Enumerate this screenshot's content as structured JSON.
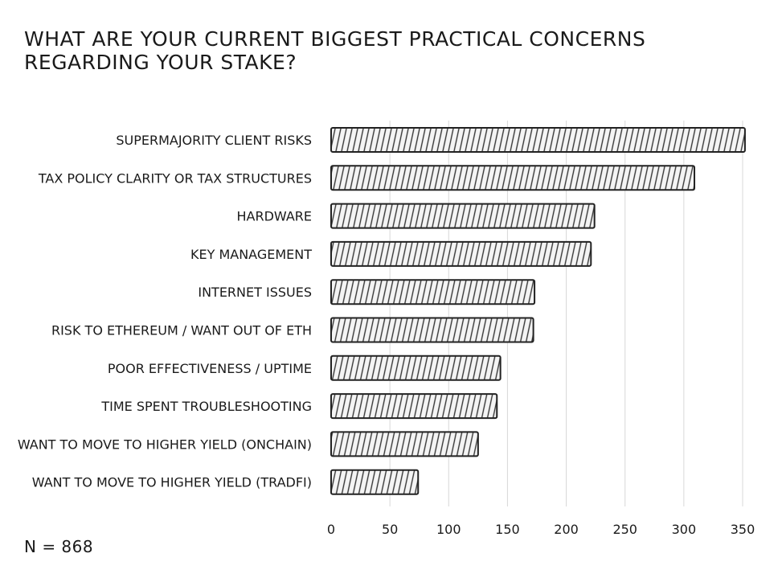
{
  "chart_data": {
    "type": "bar",
    "orientation": "horizontal",
    "title_lines": [
      "WHAT ARE YOUR CURRENT BIGGEST PRACTICAL CONCERNS",
      "REGARDING YOUR STAKE?"
    ],
    "categories": [
      "SUPERMAJORITY CLIENT RISKS",
      "TAX POLICY CLARITY OR TAX STRUCTURES",
      "HARDWARE",
      "KEY MANAGEMENT",
      "INTERNET ISSUES",
      "RISK TO ETHEREUM /  WANT OUT OF ETH",
      "POOR EFFECTIVENESS / UPTIME",
      "TIME SPENT TROUBLESHOOTING",
      "WANT TO MOVE TO HIGHER YIELD (ONCHAIN)",
      "WANT TO MOVE TO HIGHER YIELD (TRADFI)"
    ],
    "values": [
      352,
      309,
      224,
      221,
      173,
      172,
      144,
      141,
      125,
      74
    ],
    "xlim": [
      0,
      350
    ],
    "xticks": [
      "0",
      "50",
      "100",
      "150",
      "200",
      "250",
      "300",
      "350"
    ],
    "grid": "vertical",
    "style": "hand-drawn hatched bars",
    "colors": {
      "bar_outline": "#222222",
      "hatch": "#333333",
      "grid": "#d8d8d8"
    },
    "annotation": "N = 868"
  }
}
